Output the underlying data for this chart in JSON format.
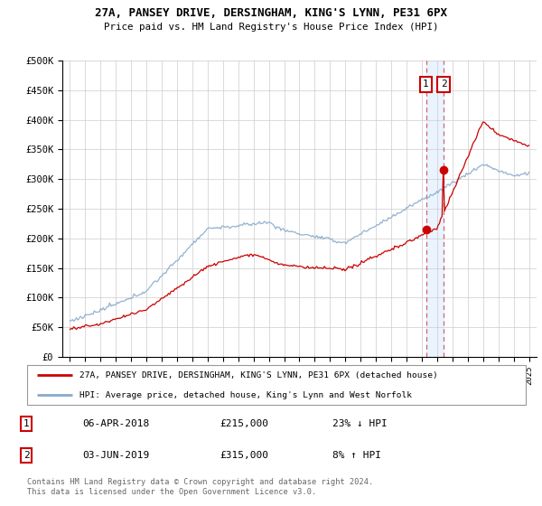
{
  "title": "27A, PANSEY DRIVE, DERSINGHAM, KING'S LYNN, PE31 6PX",
  "subtitle": "Price paid vs. HM Land Registry's House Price Index (HPI)",
  "legend_label_red": "27A, PANSEY DRIVE, DERSINGHAM, KING'S LYNN, PE31 6PX (detached house)",
  "legend_label_blue": "HPI: Average price, detached house, King's Lynn and West Norfolk",
  "transaction_1_date": "06-APR-2018",
  "transaction_1_price": "£215,000",
  "transaction_1_hpi": "23% ↓ HPI",
  "transaction_2_date": "03-JUN-2019",
  "transaction_2_price": "£315,000",
  "transaction_2_hpi": "8% ↑ HPI",
  "footer": "Contains HM Land Registry data © Crown copyright and database right 2024.\nThis data is licensed under the Open Government Licence v3.0.",
  "red_color": "#cc0000",
  "blue_color": "#88aacc",
  "background_color": "#ffffff",
  "grid_color": "#cccccc",
  "transaction1_x": 2018.27,
  "transaction2_x": 2019.42,
  "transaction1_y": 215000,
  "transaction2_y": 315000,
  "ylim": [
    0,
    500000
  ],
  "xlim": [
    1994.5,
    2025.5
  ]
}
